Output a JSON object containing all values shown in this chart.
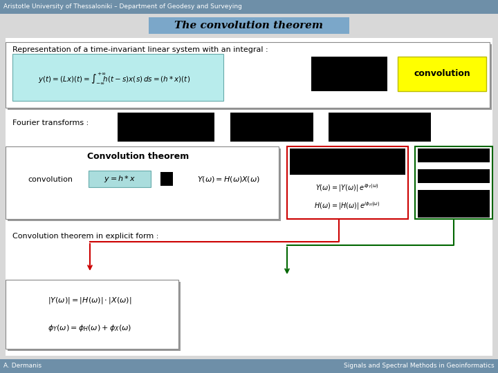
{
  "title": "The convolution theorem",
  "header_text": "Aristotle University of Thessaloniki – Department of Geodesy and Surveying",
  "footer_left": "A. Dermanis",
  "footer_right": "Signals and Spectral Methods in Geoinformatics",
  "header_bg": "#6e8fa8",
  "footer_bg": "#6e8fa8",
  "title_bg": "#7ba7c9",
  "slide_bg": "#d8d8d8",
  "content_bg": "#ffffff",
  "black": "#000000",
  "cyan_box_bg": "#aadddd",
  "yellow_box_bg": "#ffff00",
  "light_cyan": "#b8ecec",
  "red_arrow": "#cc0000",
  "green_arrow": "#006600",
  "red_box_border": "#cc0000",
  "green_box_border": "#006600",
  "shadow": "#999999",
  "border_gray": "#888888"
}
